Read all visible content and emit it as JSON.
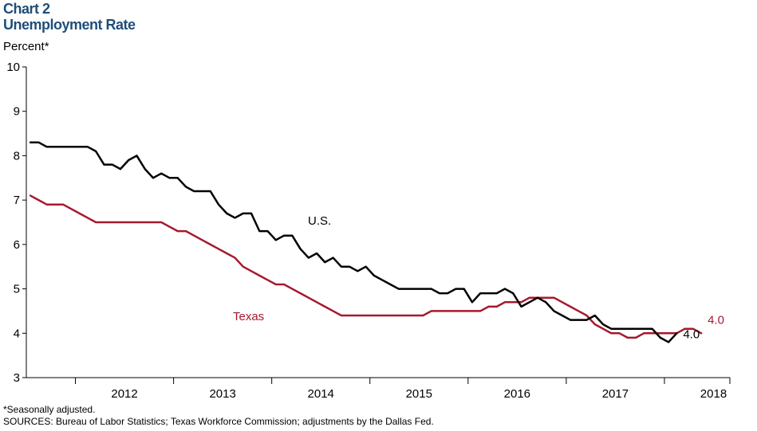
{
  "header": {
    "chart_number": "Chart 2",
    "title": "Unemployment Rate"
  },
  "footer": {
    "note": "*Seasonally adjusted.",
    "sources": "SOURCES: Bureau of Labor Statistics; Texas Workforce Commission; adjustments by the Dallas Fed."
  },
  "chart_data": {
    "type": "line",
    "title": "Unemployment Rate",
    "ylabel": "Percent*",
    "ylim": [
      3,
      10
    ],
    "yticks": [
      "3",
      "4",
      "5",
      "6",
      "7",
      "8",
      "9",
      "10"
    ],
    "x_start": "2011-07",
    "x_end": "2018-09",
    "xtick_labels": [
      "2012",
      "2013",
      "2014",
      "2015",
      "2016",
      "2017",
      "2018"
    ],
    "grid": false,
    "colors": {
      "us": "#000000",
      "texas": "#a6192e"
    },
    "series": [
      {
        "name": "U.S.",
        "end_label": "4.0",
        "values": [
          8.3,
          8.3,
          8.2,
          8.2,
          8.2,
          8.2,
          8.2,
          8.2,
          8.1,
          7.8,
          7.8,
          7.7,
          7.9,
          8.0,
          7.7,
          7.5,
          7.6,
          7.5,
          7.5,
          7.3,
          7.2,
          7.2,
          7.2,
          6.9,
          6.7,
          6.6,
          6.7,
          6.7,
          6.3,
          6.3,
          6.1,
          6.2,
          6.2,
          5.9,
          5.7,
          5.8,
          5.6,
          5.7,
          5.5,
          5.5,
          5.4,
          5.5,
          5.3,
          5.2,
          5.1,
          5.0,
          5.0,
          5.0,
          5.0,
          5.0,
          4.9,
          4.9,
          5.0,
          5.0,
          4.7,
          4.9,
          4.9,
          4.9,
          5.0,
          4.9,
          4.6,
          4.7,
          4.8,
          4.7,
          4.5,
          4.4,
          4.3,
          4.3,
          4.3,
          4.4,
          4.2,
          4.1,
          4.1,
          4.1,
          4.1,
          4.1,
          4.1,
          3.9,
          3.8,
          4.0
        ]
      },
      {
        "name": "Texas",
        "end_label": "4.0",
        "values": [
          7.1,
          7.0,
          6.9,
          6.9,
          6.9,
          6.8,
          6.7,
          6.6,
          6.5,
          6.5,
          6.5,
          6.5,
          6.5,
          6.5,
          6.5,
          6.5,
          6.5,
          6.4,
          6.3,
          6.3,
          6.2,
          6.1,
          6.0,
          5.9,
          5.8,
          5.7,
          5.5,
          5.4,
          5.3,
          5.2,
          5.1,
          5.1,
          5.0,
          4.9,
          4.8,
          4.7,
          4.6,
          4.5,
          4.4,
          4.4,
          4.4,
          4.4,
          4.4,
          4.4,
          4.4,
          4.4,
          4.4,
          4.4,
          4.4,
          4.5,
          4.5,
          4.5,
          4.5,
          4.5,
          4.5,
          4.5,
          4.6,
          4.6,
          4.7,
          4.7,
          4.7,
          4.8,
          4.8,
          4.8,
          4.8,
          4.7,
          4.6,
          4.5,
          4.4,
          4.2,
          4.1,
          4.0,
          4.0,
          3.9,
          3.9,
          4.0,
          4.0,
          4.0,
          4.0,
          4.0,
          4.1,
          4.1,
          4.0
        ]
      }
    ]
  }
}
